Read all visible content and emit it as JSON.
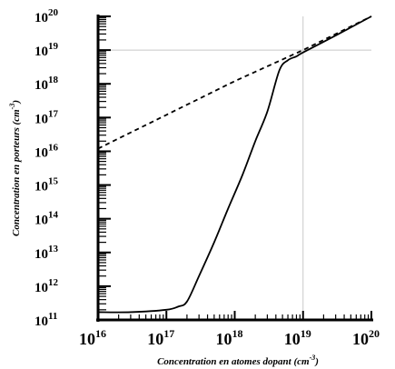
{
  "chart_data": {
    "type": "line",
    "title": "",
    "xlabel_text": "Concentration en atomes dopant (cm",
    "xlabel_sup": "-3",
    "xlabel_close": ")",
    "ylabel_text": "Concentration en porteurs (cm",
    "ylabel_sup": "-3",
    "ylabel_close": ")",
    "x_scale": "log",
    "y_scale": "log",
    "xlim": [
      1e+16,
      1e+20
    ],
    "ylim": [
      100000000000.0,
      1e+20
    ],
    "x_ticks": [
      {
        "base": "10",
        "exp": "16",
        "value": 16
      },
      {
        "base": "10",
        "exp": "17",
        "value": 17
      },
      {
        "base": "10",
        "exp": "18",
        "value": 18
      },
      {
        "base": "10",
        "exp": "19",
        "value": 19
      },
      {
        "base": "10",
        "exp": "20",
        "value": 20
      }
    ],
    "y_ticks": [
      {
        "base": "10",
        "exp": "11",
        "value": 11
      },
      {
        "base": "10",
        "exp": "12",
        "value": 12
      },
      {
        "base": "10",
        "exp": "13",
        "value": 13
      },
      {
        "base": "10",
        "exp": "14",
        "value": 14
      },
      {
        "base": "10",
        "exp": "15",
        "value": 15
      },
      {
        "base": "10",
        "exp": "16",
        "value": 16
      },
      {
        "base": "10",
        "exp": "17",
        "value": 17
      },
      {
        "base": "10",
        "exp": "18",
        "value": 18
      },
      {
        "base": "10",
        "exp": "19",
        "value": 19
      },
      {
        "base": "10",
        "exp": "20",
        "value": 20
      }
    ],
    "grid": "reference lines at x = 10^19 and y = 10^19",
    "series": [
      {
        "style": "dashed",
        "color": "#000000",
        "x": [
          1e+16,
          1e+17,
          1e+18,
          1e+19,
          1e+20
        ],
        "y": [
          1.2e+16,
          1.2e+17,
          1.2e+18,
          1e+19,
          1e+20
        ]
      },
      {
        "style": "solid",
        "color": "#000000",
        "x": [
          1e+16,
          3e+16,
          1e+17,
          1.5e+17,
          2e+17,
          3e+17,
          5e+17,
          8e+17,
          1.3e+18,
          2e+18,
          3e+18,
          4.5e+18,
          6e+18,
          8e+18,
          1e+19,
          3e+19,
          1e+20
        ],
        "y": [
          170000000000.0,
          170000000000.0,
          200000000000.0,
          250000000000.0,
          350000000000.0,
          2000000000000.0,
          20000000000000.0,
          200000000000000.0,
          2000000000000000.0,
          2e+16,
          1.5e+17,
          2.5e+18,
          5e+18,
          6.5e+18,
          8.5e+18,
          2.7e+19,
          1e+20
        ]
      }
    ]
  }
}
